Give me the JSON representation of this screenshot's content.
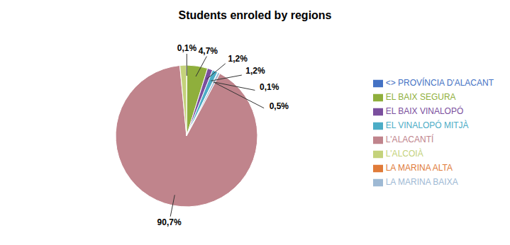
{
  "chart_data": {
    "type": "pie",
    "title": "Students enroled by regions",
    "categories": [
      "<> PROVÍNCIA D'ALACANT",
      "EL BAIX SEGURA",
      "EL BAIX VINALOPÓ",
      "EL VINALOPÓ MITJÀ",
      "LA MARINA ALTA",
      "LA MARINA BAIXA",
      "L'ALACANTÍ",
      "L'ALCOIÀ"
    ],
    "values": [
      0.1,
      4.7,
      1.2,
      1.2,
      0.1,
      0.5,
      90.7,
      1.5
    ],
    "value_labels": [
      "0,1%",
      "4,7%",
      "1,2%",
      "1,2%",
      "0,1%",
      "0,5%",
      "90,7%",
      null
    ],
    "colors": [
      "#4472C4",
      "#8FAF3C",
      "#7B4F9E",
      "#4BACC6",
      "#E07B39",
      "#9EB9D4",
      "#C0848C",
      "#C4D27B"
    ],
    "data_labels": true,
    "legend": "right"
  }
}
